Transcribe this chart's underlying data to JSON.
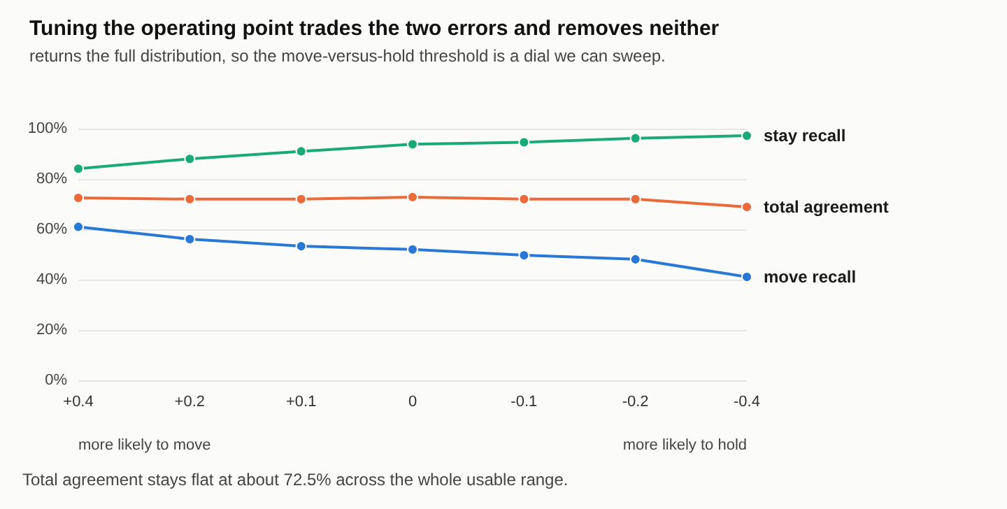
{
  "chart_data": {
    "type": "line",
    "title": "Tuning the operating point trades the two errors and removes neither",
    "subtitle": "returns the full distribution, so the move-versus-hold threshold is a dial we can sweep.",
    "categories": [
      "+0.4",
      "+0.2",
      "+0.1",
      "0",
      "-0.1",
      "-0.2",
      "-0.4"
    ],
    "series": [
      {
        "name": "stay recall",
        "color": "#1aaa78",
        "values": [
          84.1,
          88.0,
          91.0,
          93.8,
          94.6,
          96.2,
          97.2
        ]
      },
      {
        "name": "total agreement",
        "color": "#ea6a3a",
        "values": [
          72.5,
          72.0,
          72.0,
          72.8,
          72.0,
          72.0,
          68.9
        ]
      },
      {
        "name": "move recall",
        "color": "#2a78d6",
        "values": [
          61.0,
          56.1,
          53.3,
          52.0,
          49.7,
          48.1,
          41.1
        ]
      }
    ],
    "ylim": [
      0,
      100
    ],
    "yticks": [
      {
        "value": 0,
        "label": "0%"
      },
      {
        "value": 20,
        "label": "20%"
      },
      {
        "value": 40,
        "label": "40%"
      },
      {
        "value": 60,
        "label": "60%"
      },
      {
        "value": 80,
        "label": "80%"
      },
      {
        "value": 100,
        "label": "100%"
      }
    ],
    "grid": "y",
    "legend": false,
    "marker": "circle",
    "line_style": "solid",
    "annotations": [
      "more likely to move",
      "more likely to hold",
      "Total agreement stays flat at about 72.5% across the whole usable range."
    ]
  }
}
